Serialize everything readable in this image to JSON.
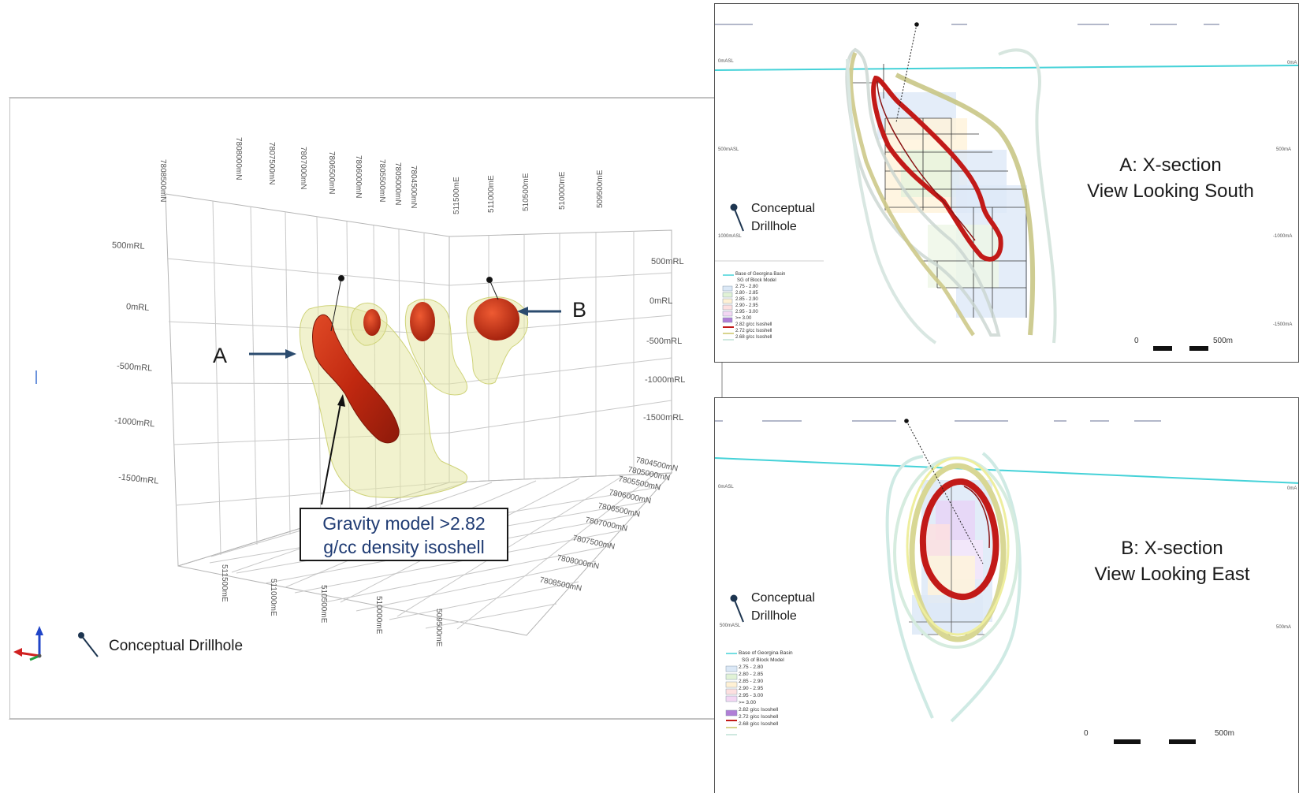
{
  "main_view": {
    "rl_left": [
      "500mRL",
      "0mRL",
      "-500mRL",
      "-1000mRL",
      "-1500mRL"
    ],
    "rl_right": [
      "500mRL",
      "0mRL",
      "-500mRL",
      "-1000mRL",
      "-1500mRL"
    ],
    "northing_top": [
      "7808500mN",
      "7808000mN",
      "7807500mN",
      "7807000mN",
      "7806500mN",
      "7806000mN",
      "7805500mN",
      "7805000mN",
      "7804500mN"
    ],
    "easting_top": [
      "511500mE",
      "511000mE",
      "510500mE",
      "510000mE",
      "509500mE"
    ],
    "northing_right": [
      "7804500mN",
      "7805000mN",
      "7805500mN",
      "7806000mN",
      "7806500mN",
      "7807000mN",
      "7807500mN",
      "7808000mN",
      "7808500mN"
    ],
    "easting_bottom": [
      "511500mE",
      "511000mE",
      "510500mE",
      "510000mE",
      "509500mE"
    ],
    "label_a": "A",
    "label_b": "B",
    "callout_line1": "Gravity model >2.82",
    "callout_line2": "g/cc density isoshell",
    "legend_drillhole": "Conceptual Drillhole",
    "colors": {
      "isoshell_high": "#c62a12",
      "isoshell_low": "#e6e8a6",
      "arrow": "#2b4b6e",
      "callout_text": "#1f3b73"
    }
  },
  "section_a": {
    "title_line1": "A: X-section",
    "title_line2": "View Looking South",
    "drillhole_line1": "Conceptual",
    "drillhole_line2": "Drillhole",
    "left_labels": [
      "0mASL",
      "500mASL",
      "1000mASL"
    ],
    "right_labels": [
      "0mA",
      "500mA",
      "-1000mA",
      "-1500mA"
    ],
    "legend_title": "Base of Georgina Basin",
    "legend_subtitle": "SG of Block Model",
    "legend_items": [
      "2.75 - 2.80",
      "2.80 - 2.85",
      "2.85 - 2.90",
      "2.90 - 2.95",
      "2.95 - 3.00",
      ">= 3.00",
      "2.82 g/cc Isoshell",
      "2.72 g/cc Isoshell",
      "2.68 g/cc Isoshell"
    ],
    "scale_zero": "0",
    "scale_end": "500m"
  },
  "section_b": {
    "title_line1": "B: X-section",
    "title_line2": "View Looking East",
    "drillhole_line1": "Conceptual",
    "drillhole_line2": "Drillhole",
    "left_labels": [
      "0mASL",
      "500mASL"
    ],
    "right_labels": [
      "0mA",
      "500mA"
    ],
    "legend_title": "Base of Georgina Basin",
    "legend_subtitle": "SG of Block Model",
    "legend_items": [
      "2.75 - 2.80",
      "2.80 - 2.85",
      "2.85 - 2.90",
      "2.90 - 2.95",
      "2.95 - 3.00",
      ">= 3.00",
      "2.82 g/cc Isoshell",
      "2.72 g/cc Isoshell",
      "2.68 g/cc Isoshell"
    ],
    "scale_zero": "0",
    "scale_end": "500m"
  }
}
